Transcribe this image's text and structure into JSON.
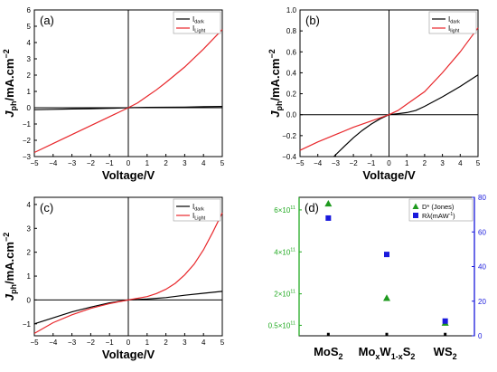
{
  "chart_data": [
    {
      "panel": "(a)",
      "type": "line",
      "xlabel": "Voltage/V",
      "ylabel_main": "J",
      "ylabel_sub": "ph",
      "ylabel_rest": "/mA.cm",
      "ylabel_sup": "−2",
      "xlim": [
        -5,
        5
      ],
      "ylim": [
        -3,
        6
      ],
      "xticks": [
        -5,
        -4,
        -3,
        -2,
        -1,
        0,
        1,
        2,
        3,
        4,
        5
      ],
      "yticks": [
        -3,
        -2,
        -1,
        0,
        1,
        2,
        3,
        4,
        5,
        6
      ],
      "legend": "top-right",
      "series": [
        {
          "name": "I",
          "name_sub": "dark",
          "color": "#000000",
          "x": [
            -5,
            -4,
            -3,
            -2,
            -1,
            0,
            1,
            2,
            3,
            4,
            5
          ],
          "y": [
            -0.12,
            -0.1,
            -0.08,
            -0.06,
            -0.04,
            0,
            0.02,
            0.03,
            0.04,
            0.06,
            0.08
          ]
        },
        {
          "name": "I",
          "name_sub": "Light",
          "color": "#e8272b",
          "x": [
            -5,
            -4,
            -3,
            -2,
            -1,
            -0.5,
            0,
            0.5,
            1,
            1.5,
            2,
            3,
            4,
            5
          ],
          "y": [
            -2.75,
            -2.2,
            -1.65,
            -1.1,
            -0.55,
            -0.28,
            0,
            0.3,
            0.7,
            1.1,
            1.55,
            2.5,
            3.6,
            4.8
          ]
        }
      ]
    },
    {
      "panel": "(b)",
      "type": "line",
      "xlabel": "Voltage/V",
      "ylabel_main": "J",
      "ylabel_sub": "ph",
      "ylabel_rest": "/mA.cm",
      "ylabel_sup": "−2",
      "xlim": [
        -5,
        5
      ],
      "ylim": [
        -0.4,
        1.0
      ],
      "xticks": [
        -5,
        -4,
        -3,
        -2,
        -1,
        0,
        1,
        2,
        3,
        4,
        5
      ],
      "yticks": [
        -0.4,
        -0.2,
        0.0,
        0.2,
        0.4,
        0.6,
        0.8,
        1.0
      ],
      "ytick_labels": [
        "-0.4",
        "-0.2",
        "0.0",
        "0.2",
        "0.4",
        "0.6",
        "0.8",
        "1.0"
      ],
      "legend": "top-right",
      "series": [
        {
          "name": "I",
          "name_sub": "dark",
          "color": "#000000",
          "x": [
            -3.1,
            -2.5,
            -2,
            -1.5,
            -1,
            -0.5,
            0,
            0.5,
            1,
            1.5,
            2,
            3,
            4,
            5
          ],
          "y": [
            -0.4,
            -0.3,
            -0.22,
            -0.15,
            -0.09,
            -0.04,
            0,
            0.01,
            0.02,
            0.04,
            0.08,
            0.17,
            0.27,
            0.38
          ]
        },
        {
          "name": "I",
          "name_sub": "light",
          "color": "#e8272b",
          "x": [
            -5,
            -4,
            -3,
            -2,
            -1,
            0,
            0.5,
            1,
            2,
            3,
            4,
            5
          ],
          "y": [
            -0.34,
            -0.26,
            -0.19,
            -0.12,
            -0.06,
            0,
            0.04,
            0.1,
            0.22,
            0.4,
            0.6,
            0.83
          ]
        }
      ]
    },
    {
      "panel": "(c)",
      "type": "line",
      "xlabel": "Voltage/V",
      "ylabel_main": "J",
      "ylabel_sub": "ph",
      "ylabel_rest": "/mA.cm",
      "ylabel_sup": "−2",
      "xlim": [
        -5,
        5
      ],
      "ylim": [
        -1.5,
        4.3
      ],
      "xticks": [
        -5,
        -4,
        -3,
        -2,
        -1,
        0,
        1,
        2,
        3,
        4,
        5
      ],
      "yticks": [
        -1,
        0,
        1,
        2,
        3,
        4
      ],
      "legend": "top-right",
      "series": [
        {
          "name": "I",
          "name_sub": "dark",
          "color": "#000000",
          "x": [
            -5,
            -4,
            -3,
            -2,
            -1,
            0,
            1,
            2,
            3,
            4,
            5
          ],
          "y": [
            -1.0,
            -0.75,
            -0.5,
            -0.3,
            -0.12,
            0,
            0.04,
            0.1,
            0.2,
            0.28,
            0.36
          ]
        },
        {
          "name": "I",
          "name_sub": "Light",
          "color": "#e8272b",
          "x": [
            -5,
            -4,
            -3,
            -2,
            -1,
            0,
            1,
            1.5,
            2,
            2.5,
            3,
            3.5,
            4,
            4.5,
            5
          ],
          "y": [
            -1.4,
            -0.95,
            -0.62,
            -0.35,
            -0.15,
            0,
            0.14,
            0.27,
            0.45,
            0.7,
            1.05,
            1.5,
            2.1,
            2.85,
            3.65
          ]
        }
      ]
    },
    {
      "panel": "(d)",
      "type": "scatter",
      "categories": [
        "MoS",
        "Mo",
        "WS"
      ],
      "category_labels": [
        [
          {
            "t": "MoS"
          },
          {
            "t": "2",
            "s": "sub"
          }
        ],
        [
          {
            "t": "Mo"
          },
          {
            "t": "x",
            "s": "sub"
          },
          {
            "t": "W"
          },
          {
            "t": "1-x",
            "s": "sub"
          },
          {
            "t": "S"
          },
          {
            "t": "2",
            "s": "sub"
          }
        ],
        [
          {
            "t": "WS"
          },
          {
            "t": "2",
            "s": "sub"
          }
        ]
      ],
      "left_axis": {
        "color": "#22aa22",
        "ylim": [
          0,
          6.6
        ],
        "ticks": [
          0.5,
          2,
          4,
          6
        ],
        "tick_mantissa": [
          "0.5×10",
          "2×10",
          "4×10",
          "6×10"
        ],
        "tick_exp": "11"
      },
      "right_axis": {
        "color": "#1a1adc",
        "ylim": [
          0,
          80
        ],
        "ticks": [
          0,
          20,
          40,
          60,
          80
        ],
        "tick_labels": [
          "0",
          "20",
          "40",
          "60",
          "80"
        ]
      },
      "legend": "top-right",
      "series": [
        {
          "name": "D* (Jones)",
          "marker": "triangle",
          "color": "#1e9a1e",
          "axis": "left",
          "values": [
            6.3,
            1.8,
            0.62
          ]
        },
        {
          "name": "Rλ(mAW",
          "name_sup": "-1",
          "name_tail": ")",
          "marker": "square",
          "color": "#1a1adc",
          "axis": "right",
          "values": [
            68,
            47,
            8.5
          ]
        },
        {
          "name": "",
          "marker": "square-small",
          "color": "#000000",
          "axis": "right",
          "values": [
            0.4,
            0.4,
            0.4
          ]
        }
      ]
    }
  ]
}
